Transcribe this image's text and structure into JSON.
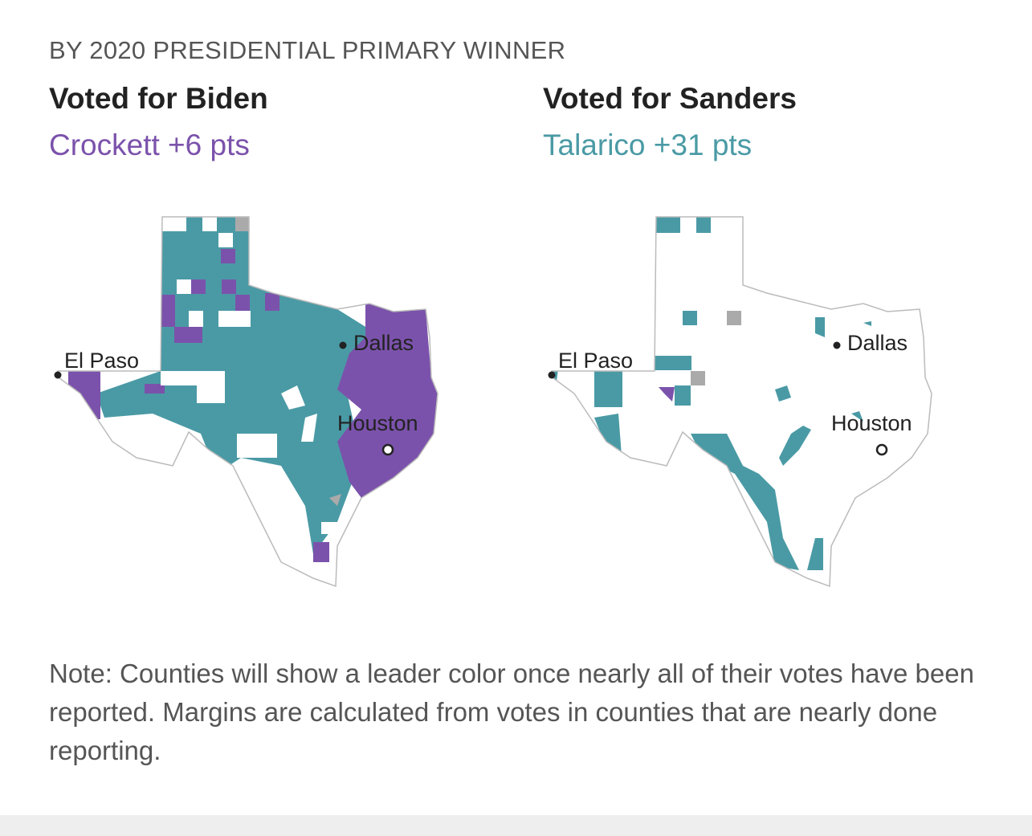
{
  "kicker": "BY 2020 PRESIDENTIAL PRIMARY WINNER",
  "panels": [
    {
      "heading": "Voted for Biden",
      "leader": "Crockett +6 pts",
      "leader_color": "#7b52ab"
    },
    {
      "heading": "Voted for Sanders",
      "leader": "Talarico +31 pts",
      "leader_color": "#4a9aa5"
    }
  ],
  "cities": {
    "el_paso": "El Paso",
    "dallas": "Dallas",
    "houston": "Houston"
  },
  "colors": {
    "crockett": "#7b52ab",
    "talarico": "#4a9aa5",
    "no_data": "#aaaaaa",
    "outline": "#bbbbbb"
  },
  "note": "Note: Counties will show a leader color once nearly all of their votes have been reported. Margins are calculated from votes in counties that are nearly done reporting."
}
